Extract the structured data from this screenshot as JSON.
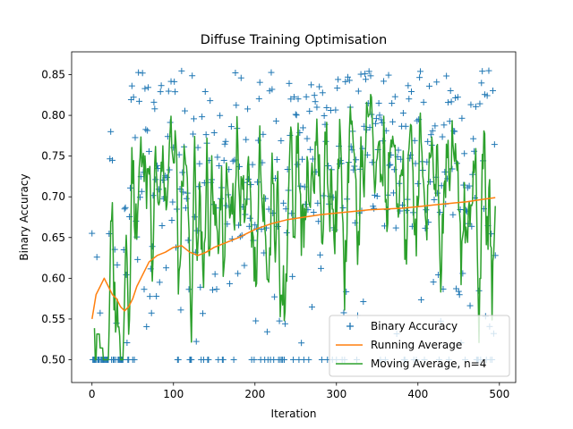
{
  "chart_data": {
    "type": "line",
    "title": "Diffuse Training Optimisation",
    "xlabel": "Iteration",
    "ylabel": "Binary Accuracy",
    "xlim": [
      -25,
      520
    ],
    "ylim": [
      0.472,
      0.878
    ],
    "x_ticks": [
      0,
      100,
      200,
      300,
      400,
      500
    ],
    "y_ticks": [
      0.5,
      0.55,
      0.6,
      0.65,
      0.7,
      0.75,
      0.8,
      0.85
    ],
    "x_tick_labels": [
      "0",
      "100",
      "200",
      "300",
      "400",
      "500"
    ],
    "y_tick_labels": [
      "0.50",
      "0.55",
      "0.60",
      "0.65",
      "0.70",
      "0.75",
      "0.80",
      "0.85"
    ],
    "grid": false,
    "legend_position": "lower-right",
    "series": [
      {
        "name": "Binary Accuracy",
        "style": "markers-plus",
        "color": "#1f77b4",
        "n_points": 496,
        "value_range": [
          0.5,
          0.865
        ],
        "note_distribution": "mostly 0.5 for iterations 0-45, then scattered between 0.5 and 0.86"
      },
      {
        "name": "Running Average",
        "style": "line",
        "color": "#ff7f0e",
        "x": [
          0,
          5,
          10,
          15,
          20,
          25,
          30,
          35,
          40,
          45,
          50,
          55,
          60,
          70,
          80,
          90,
          100,
          110,
          120,
          130,
          140,
          150,
          160,
          180,
          200,
          220,
          240,
          260,
          280,
          300,
          320,
          340,
          360,
          380,
          400,
          420,
          440,
          460,
          480,
          495
        ],
        "y": [
          0.55,
          0.58,
          0.59,
          0.6,
          0.59,
          0.58,
          0.575,
          0.565,
          0.56,
          0.565,
          0.575,
          0.59,
          0.6,
          0.62,
          0.628,
          0.632,
          0.638,
          0.64,
          0.632,
          0.628,
          0.632,
          0.638,
          0.642,
          0.65,
          0.66,
          0.667,
          0.672,
          0.675,
          0.678,
          0.68,
          0.682,
          0.684,
          0.685,
          0.686,
          0.688,
          0.69,
          0.692,
          0.694,
          0.697,
          0.699
        ]
      },
      {
        "name": "Moving Average, n=4",
        "style": "line",
        "color": "#2ca02c",
        "window": 4
      }
    ],
    "legend": [
      {
        "label": "Binary Accuracy",
        "marker": "plus",
        "color": "#1f77b4"
      },
      {
        "label": "Running Average",
        "marker": "line",
        "color": "#ff7f0e"
      },
      {
        "label": "Moving Average, n=4",
        "marker": "line",
        "color": "#2ca02c"
      }
    ]
  }
}
